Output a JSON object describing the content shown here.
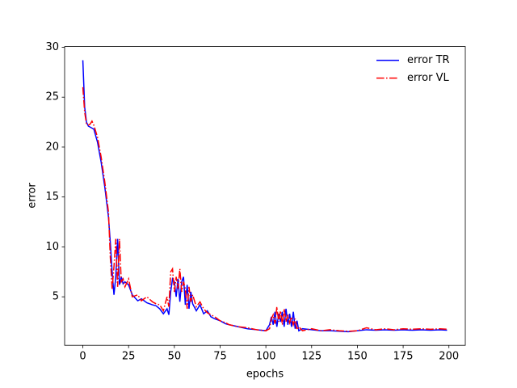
{
  "chart_data": {
    "type": "line",
    "xlabel": "epochs",
    "ylabel": "error",
    "x": [
      0,
      1,
      2,
      3,
      4,
      5,
      6,
      8,
      10,
      12,
      14,
      15,
      16,
      17,
      18,
      19,
      20,
      21,
      22,
      23,
      25,
      27,
      30,
      32,
      35,
      38,
      40,
      42,
      44,
      46,
      47,
      48,
      49,
      50,
      51,
      52,
      53,
      54,
      55,
      56,
      57,
      58,
      59,
      60,
      62,
      64,
      66,
      68,
      70,
      72,
      75,
      78,
      80,
      85,
      90,
      95,
      100,
      102,
      103,
      104,
      105,
      106,
      107,
      108,
      109,
      110,
      111,
      112,
      113,
      114,
      115,
      116,
      117,
      118,
      120,
      125,
      130,
      135,
      140,
      145,
      150,
      155,
      160,
      165,
      170,
      175,
      180,
      185,
      190,
      195,
      199
    ],
    "series": [
      {
        "name": "error TR",
        "color": "#0000ff",
        "dash": "solid",
        "values": [
          28.7,
          24,
          22.5,
          22.1,
          22,
          21.9,
          21.8,
          20.5,
          18.5,
          16,
          13,
          10.5,
          7.5,
          5.2,
          7,
          10.8,
          6.2,
          7,
          6.3,
          6.5,
          6.2,
          5.2,
          4.6,
          4.8,
          4.4,
          4.2,
          4.1,
          3.8,
          3.3,
          3.8,
          3.2,
          5.5,
          6.8,
          6.5,
          5,
          6.8,
          4.5,
          6.5,
          7,
          4.2,
          6.2,
          3.8,
          5.5,
          4.3,
          3.6,
          4.2,
          3.3,
          3.6,
          3,
          2.8,
          2.6,
          2.3,
          2.2,
          2,
          1.8,
          1.7,
          1.6,
          2.2,
          3,
          2.2,
          3.5,
          2,
          3.3,
          2.5,
          3.5,
          2,
          3.8,
          2.2,
          3.3,
          2,
          3.5,
          1.8,
          2.6,
          1.6,
          1.8,
          1.7,
          1.6,
          1.6,
          1.55,
          1.5,
          1.6,
          1.7,
          1.65,
          1.7,
          1.65,
          1.7,
          1.65,
          1.7,
          1.65,
          1.7,
          1.65
        ]
      },
      {
        "name": "error VL",
        "color": "#ff0000",
        "dash": "dashdot",
        "values": [
          26,
          23.5,
          22.3,
          22.2,
          22.3,
          22.6,
          22.2,
          21,
          19,
          16.5,
          13.5,
          9,
          5.8,
          8,
          10.8,
          6,
          10.8,
          6.5,
          6.8,
          6,
          6.8,
          5,
          5.2,
          4.6,
          5,
          4.5,
          4.3,
          4.2,
          3.6,
          5,
          4,
          7.5,
          7.8,
          5.5,
          7,
          5.8,
          7.8,
          5.5,
          6.5,
          5.8,
          3.8,
          6,
          4.5,
          5.2,
          4,
          4.5,
          3.8,
          3.4,
          3.2,
          3,
          2.6,
          2.4,
          2.2,
          2,
          1.9,
          1.7,
          1.6,
          1.8,
          2.8,
          3.2,
          2.3,
          4,
          2.5,
          3.6,
          2.2,
          3.8,
          2.5,
          3.2,
          2.4,
          3,
          2.2,
          2.8,
          1.7,
          2,
          1.6,
          1.8,
          1.6,
          1.7,
          1.6,
          1.55,
          1.6,
          1.9,
          1.7,
          1.8,
          1.7,
          1.8,
          1.75,
          1.8,
          1.75,
          1.8,
          1.75
        ]
      }
    ],
    "xlim": [
      -9.95,
      208.95
    ],
    "ylim": [
      0.14,
      30.07
    ],
    "xticks": [
      0,
      25,
      50,
      75,
      100,
      125,
      150,
      175,
      200
    ],
    "yticks": [
      5,
      10,
      15,
      20,
      25,
      30
    ],
    "grid": false,
    "legend": "upper right"
  }
}
